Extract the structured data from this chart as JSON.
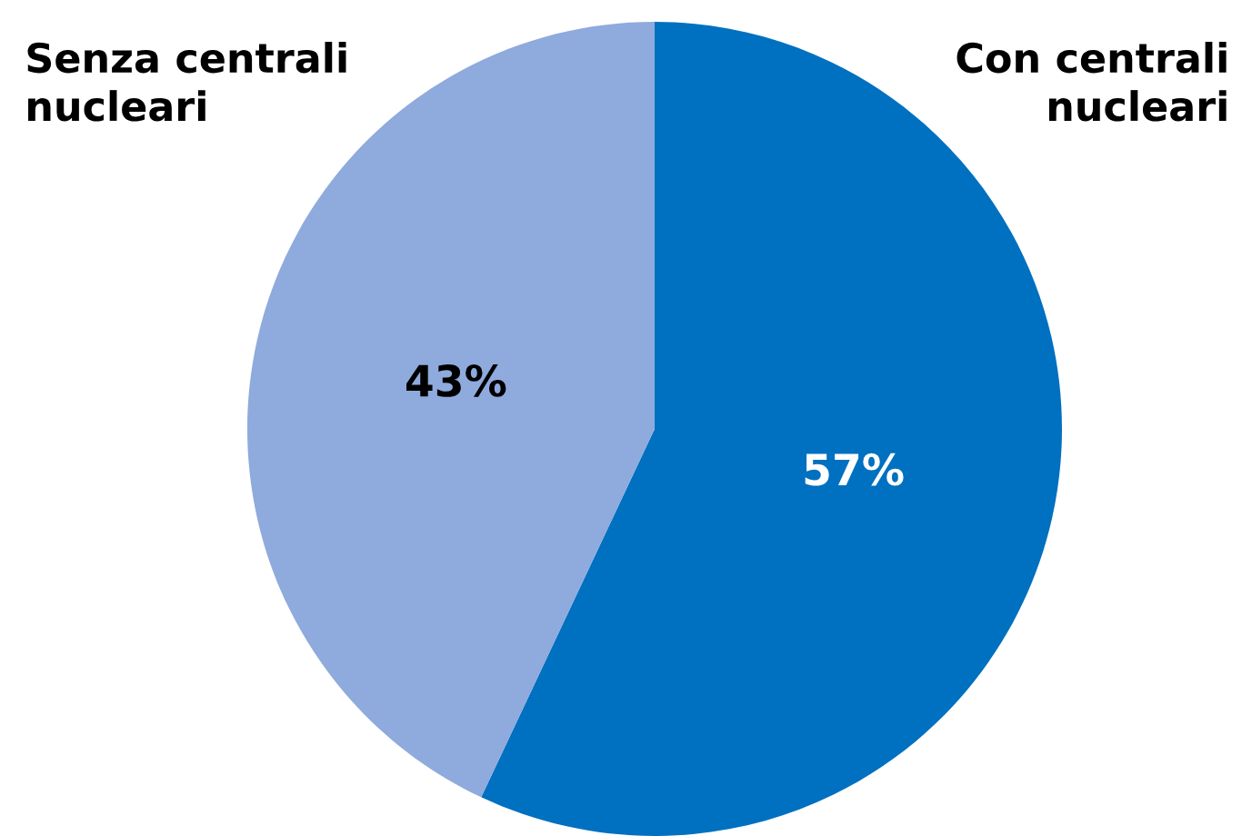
{
  "chart_data": {
    "type": "pie",
    "categories": [
      "Con centrali nucleari",
      "Senza centrali nucleari"
    ],
    "values": [
      57,
      43
    ],
    "colors": [
      "#0070c0",
      "#8faadc"
    ],
    "value_labels": [
      "57%",
      "43%"
    ],
    "legend": false
  }
}
